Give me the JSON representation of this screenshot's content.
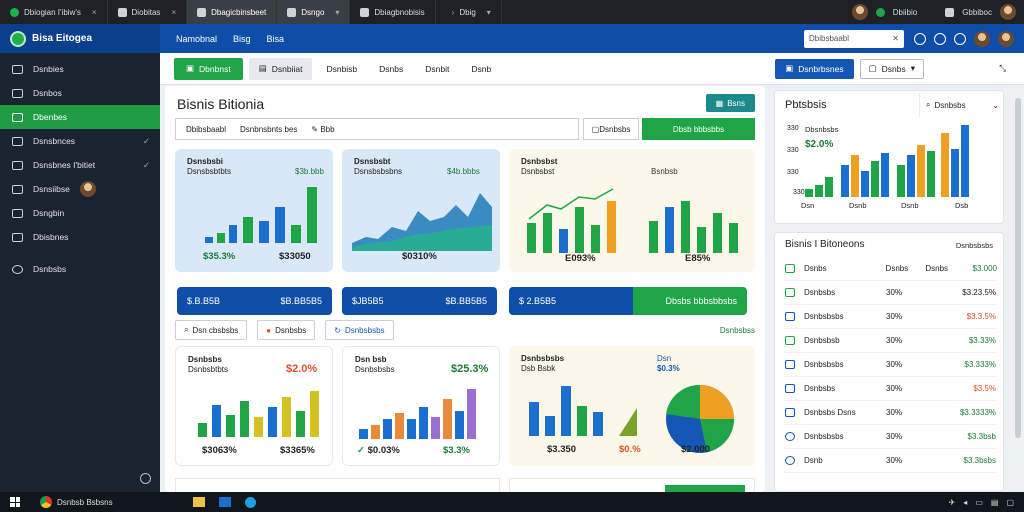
{
  "browser": {
    "tabs": [
      {
        "label": "Dbiogian I'ibiw's"
      },
      {
        "label": "Diobitas"
      },
      {
        "label": "Dbagicbinsbeet"
      },
      {
        "label": "Dsngo"
      },
      {
        "label": "Dbiagbnobisis"
      },
      {
        "label": "Dbig"
      }
    ],
    "right_label": "Dbiibio",
    "right_label2": "Gbbiboc"
  },
  "app": {
    "brand": "Bisa Eitogea",
    "nav": [
      "Namobnal",
      "Bisg",
      "Bisa"
    ],
    "search_placeholder": "Dbibsbaabl"
  },
  "sidebar": {
    "items": [
      {
        "label": "Dsnbies",
        "active": false,
        "chevron": false
      },
      {
        "label": "Dsnbos",
        "active": false,
        "chevron": false
      },
      {
        "label": "Dbenbes",
        "active": true,
        "chevron": false
      },
      {
        "label": "Dsnsbnces",
        "active": false,
        "chevron": true
      },
      {
        "label": "Dsnsbnes I'bitiet",
        "active": false,
        "chevron": true
      },
      {
        "label": "Dsnsiibse",
        "active": false,
        "chevron": false
      },
      {
        "label": "Dsngbin",
        "active": false,
        "chevron": false
      },
      {
        "label": "Dbisbnes",
        "active": false,
        "chevron": false
      },
      {
        "label": "Dsnbsbs",
        "active": false,
        "chevron": false
      }
    ]
  },
  "toolbar": {
    "primary": "Dbnbnst",
    "secondary": "Dsnbiiat",
    "links": [
      "Dsnbisb",
      "Dsnbs",
      "Dsnbit",
      "Dsnb"
    ],
    "blue_button": "Dsnbrbsnes",
    "dropdown": "Dsnbs"
  },
  "main": {
    "title": "Bisnis Bitionia",
    "action": "Bsns",
    "filters": [
      "Dbibsbaabl",
      "Dsnbnsbnts bes",
      "Bbb"
    ],
    "filter_chip": "Dsnbsbs",
    "filter_green": "Dbsb bbbsbbs",
    "cards_top": [
      {
        "title": "Dsnsbsbi",
        "subtitle": "Dsnsbsbtbts",
        "value": "$3b.bbb",
        "kpi1": "$35.3%",
        "kpi2": "$33050",
        "bars": [
          6,
          10,
          20,
          28,
          32,
          40,
          30,
          62
        ]
      },
      {
        "title": "Dsnsbsbt",
        "subtitle": "Dsnsbsbsbns",
        "value": "$4b.bbbs",
        "kpi1": "$0310%",
        "kpi2": ""
      },
      {
        "title": "Dsnbsbst",
        "subtitle": "Dsnbsbst",
        "value": "Bsnbsb",
        "kpi1": "E093%",
        "kpi2": "E85%",
        "bars": [
          30,
          45,
          38,
          60,
          52,
          70,
          44,
          56,
          40,
          64,
          50
        ]
      }
    ],
    "pills": [
      {
        "label": "$.B.B5B",
        "value": "$B.BB5B5"
      },
      {
        "label": "$JB5B5",
        "value": "$B.BB5B5"
      },
      {
        "label": "$ 2.B5B5",
        "value": "Dbsbs bbbsbbsbs"
      }
    ],
    "subtabs": [
      "Dsn cbsbsbs",
      "Dsnbsbs",
      "Dsnbsbsbs"
    ],
    "subtab_right": "Dsnbsbss",
    "cards_bottom": [
      {
        "title": "Dsnbsbs",
        "subtitle": "Dsnbsbtbts",
        "value": "$2.0%",
        "kpi1": "$3063%",
        "kpi2": "$3365%"
      },
      {
        "title": "Dsn bsb",
        "subtitle": "Dsnbsbsbs",
        "value": "$25.3%",
        "kpi1": "$0.03%",
        "kpi2": "$3.3%"
      },
      {
        "title": "Dsnbsbsbs",
        "subtitle": "Dsb Bsbk",
        "value": "Dsn",
        "value2": "$0.3%",
        "kpi1": "$3.350",
        "kpi2": "$0.%",
        "kpi3": "$2.000"
      }
    ]
  },
  "right_top": {
    "title": "Pbtsbsis",
    "search": "Dsnbsbs",
    "legend": "Dbsnbsbs",
    "value": "$2.0%",
    "y_ticks": [
      "330",
      "330",
      "330",
      "330"
    ],
    "x_labels": [
      "Dsn",
      "Dsnb",
      "Dsnb",
      "Dsb"
    ],
    "bars": [
      8,
      12,
      20,
      30,
      34,
      48,
      30,
      36,
      42,
      50,
      60,
      72,
      46,
      54,
      68
    ]
  },
  "right_bottom": {
    "title": "Bisnis I Bitoneons",
    "header_right": "Dsnbsbsbs",
    "columns": [
      "Dsnbs",
      "Dsnbs",
      "Dsnbs",
      "$3.000"
    ],
    "rows": [
      {
        "name": "Dsnbsbs",
        "pct": "30%",
        "val": "$3.23.5%",
        "color": "#333"
      },
      {
        "name": "Dsnbsbsbs",
        "pct": "30%",
        "val": "$3.3.5%",
        "color": "#d9532c"
      },
      {
        "name": "Dsnbsbsb",
        "pct": "30%",
        "val": "$3.33%",
        "color": "#1a7a3a"
      },
      {
        "name": "Dsnbsbsbs",
        "pct": "30%",
        "val": "$3.333%",
        "color": "#1a7a3a"
      },
      {
        "name": "Dsnbsbs",
        "pct": "30%",
        "val": "$3.5%",
        "color": "#d9532c"
      },
      {
        "name": "Dsnbsbs Dsns",
        "pct": "30%",
        "val": "$3.3333%",
        "color": "#1a7a3a"
      },
      {
        "name": "Dsnbsbsbs",
        "pct": "30%",
        "val": "$3.3bsb",
        "color": "#1a7a3a"
      },
      {
        "name": "Dsnb",
        "pct": "30%",
        "val": "$3.3bsbs",
        "color": "#1a7a3a"
      }
    ]
  },
  "taskbar": {
    "app": "Dsnbsb Bsbsns"
  },
  "colors": {
    "brand_blue": "#0f4ea8",
    "accent_green": "#1fa547",
    "sidebar": "#1a2330"
  }
}
